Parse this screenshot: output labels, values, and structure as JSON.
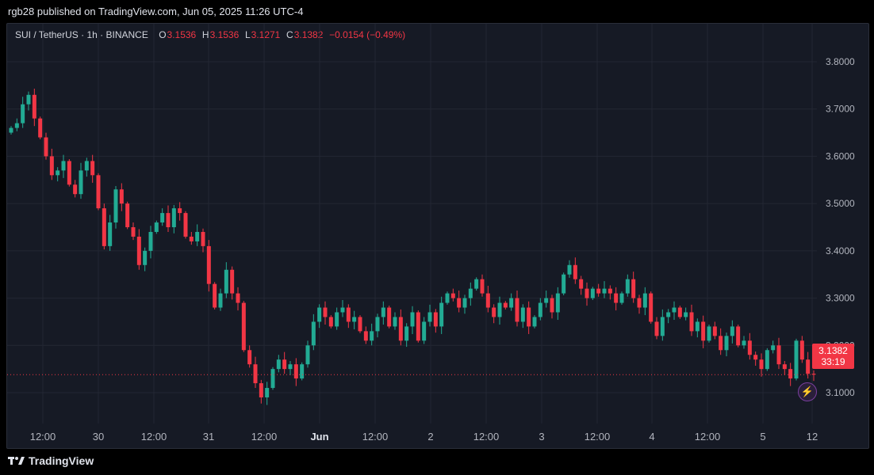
{
  "header": {
    "text": "rgb28 published on TradingView.com, Jun 05, 2025 11:26 UTC-4"
  },
  "legend": {
    "symbol": "SUI / TetherUS · 1h · BINANCE",
    "o_label": "O",
    "o_value": "3.1536",
    "h_label": "H",
    "h_value": "3.1536",
    "l_label": "L",
    "l_value": "3.1271",
    "c_label": "C",
    "c_value": "3.1382",
    "change": "−0.0154 (−0.49%)"
  },
  "price_tag": {
    "price": "3.1382",
    "countdown": "33:19"
  },
  "footer": {
    "brand": "TradingView"
  },
  "colors": {
    "up": "#22ab94",
    "down": "#f23645",
    "grid": "#232733",
    "axis_text": "#b2b5be"
  },
  "chart_data": {
    "type": "candlestick",
    "timeframe": "1h",
    "y_ticks": [
      "3.8000",
      "3.7000",
      "3.6000",
      "3.5000",
      "3.4000",
      "3.3000",
      "3.2000",
      "3.1000"
    ],
    "ylim": [
      3.03,
      3.86
    ],
    "x_ticks": [
      "12:00",
      "30",
      "12:00",
      "31",
      "12:00",
      "Jun",
      "12:00",
      "2",
      "12:00",
      "3",
      "12:00",
      "4",
      "12:00",
      "5",
      "12"
    ],
    "last_price": 3.1382,
    "closes": [
      3.66,
      3.67,
      3.71,
      3.73,
      3.68,
      3.64,
      3.6,
      3.56,
      3.57,
      3.59,
      3.54,
      3.52,
      3.57,
      3.59,
      3.56,
      3.49,
      3.41,
      3.46,
      3.53,
      3.5,
      3.45,
      3.43,
      3.37,
      3.4,
      3.44,
      3.46,
      3.48,
      3.45,
      3.49,
      3.48,
      3.43,
      3.42,
      3.44,
      3.41,
      3.33,
      3.28,
      3.31,
      3.36,
      3.31,
      3.29,
      3.19,
      3.16,
      3.12,
      3.09,
      3.11,
      3.15,
      3.17,
      3.15,
      3.16,
      3.13,
      3.16,
      3.2,
      3.25,
      3.28,
      3.26,
      3.24,
      3.27,
      3.28,
      3.25,
      3.26,
      3.23,
      3.21,
      3.23,
      3.26,
      3.28,
      3.24,
      3.26,
      3.21,
      3.24,
      3.27,
      3.21,
      3.25,
      3.27,
      3.24,
      3.29,
      3.31,
      3.3,
      3.28,
      3.3,
      3.32,
      3.34,
      3.31,
      3.28,
      3.26,
      3.29,
      3.28,
      3.3,
      3.25,
      3.28,
      3.24,
      3.26,
      3.29,
      3.3,
      3.27,
      3.31,
      3.35,
      3.37,
      3.34,
      3.32,
      3.3,
      3.32,
      3.31,
      3.32,
      3.31,
      3.29,
      3.31,
      3.34,
      3.3,
      3.28,
      3.31,
      3.25,
      3.22,
      3.26,
      3.27,
      3.28,
      3.26,
      3.27,
      3.23,
      3.25,
      3.21,
      3.24,
      3.22,
      3.19,
      3.22,
      3.24,
      3.2,
      3.21,
      3.18,
      3.17,
      3.15,
      3.19,
      3.2,
      3.16,
      3.15,
      3.13,
      3.21,
      3.17,
      3.14,
      3.138
    ]
  }
}
